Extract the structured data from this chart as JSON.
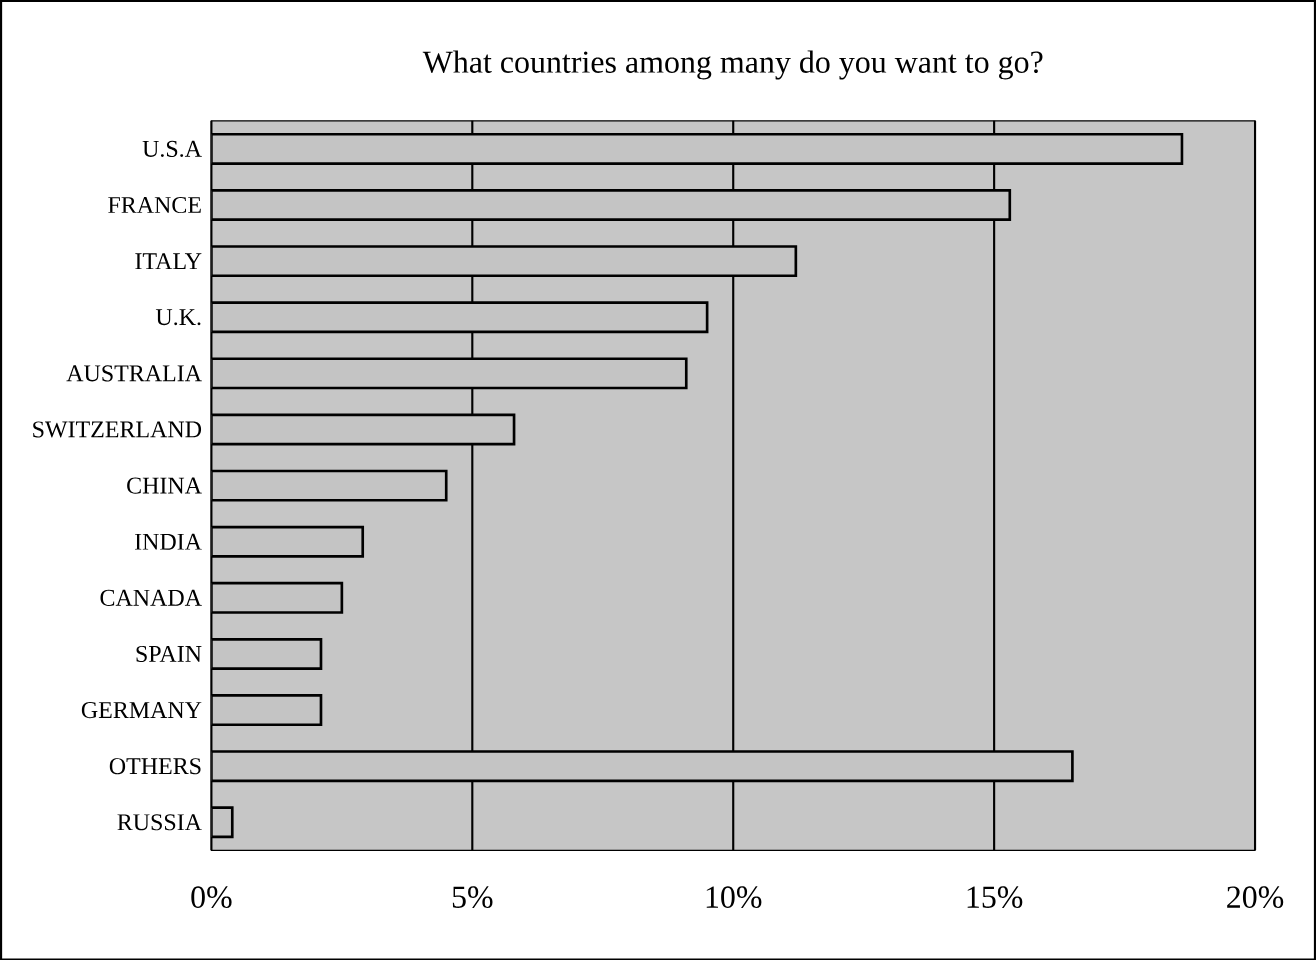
{
  "chart_data": {
    "type": "bar",
    "orientation": "horizontal",
    "title": "What countries among many do you want to go?",
    "categories": [
      "U.S.A",
      "FRANCE",
      "ITALY",
      "U.K.",
      "AUSTRALIA",
      "SWITZERLAND",
      "CHINA",
      "INDIA",
      "CANADA",
      "SPAIN",
      "GERMANY",
      "OTHERS",
      "RUSSIA"
    ],
    "values": [
      18.6,
      15.3,
      11.2,
      9.5,
      9.1,
      5.8,
      4.5,
      2.9,
      2.5,
      2.1,
      2.1,
      16.5,
      0.4
    ],
    "color": "#c4c4c4",
    "xlim": [
      0,
      20
    ],
    "xticks": [
      {
        "value": 0,
        "label": "0%"
      },
      {
        "value": 5,
        "label": "5%"
      },
      {
        "value": 10,
        "label": "10%"
      },
      {
        "value": 15,
        "label": "15%"
      },
      {
        "value": 20,
        "label": "20%"
      }
    ],
    "grid": "x"
  }
}
